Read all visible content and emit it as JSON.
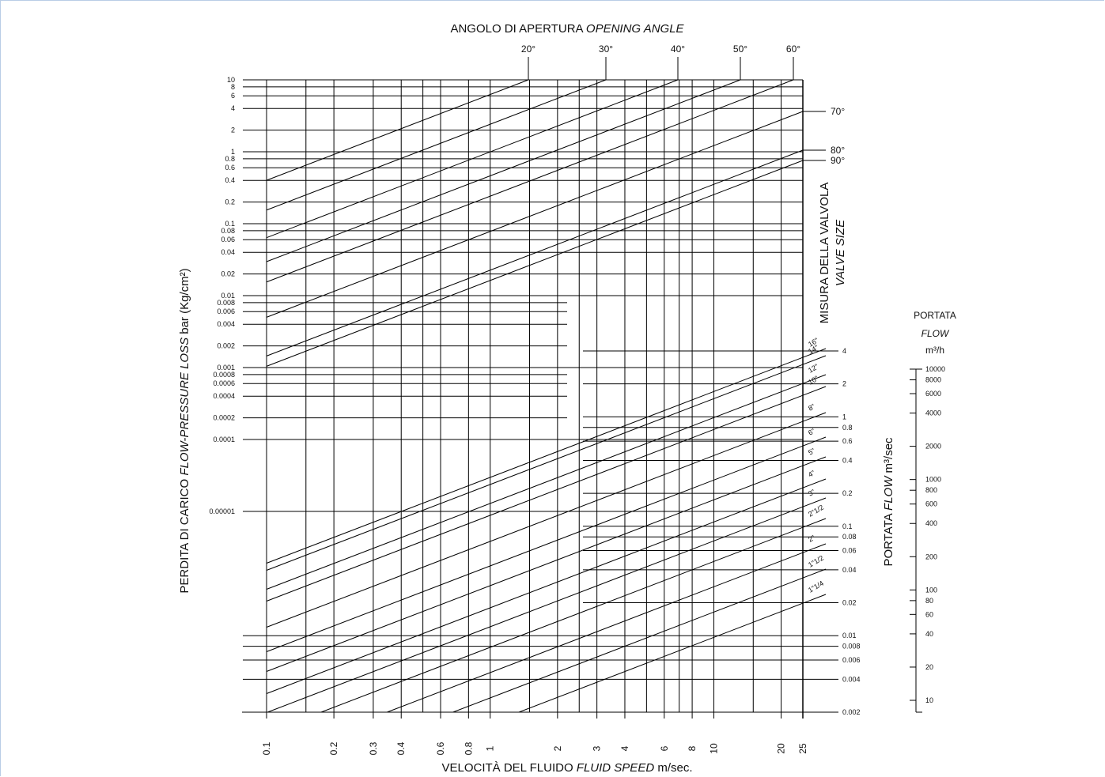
{
  "chart_data": {
    "type": "line",
    "title_it": "ANGOLO DI APERTURA",
    "title_en": "OPENING ANGLE",
    "xlabel_it": "VELOCITÀ DEL FLUIDO",
    "xlabel_en": "FLUID SPEED",
    "xlabel_unit": "m/sec.",
    "ylabel_it": "PERDITA DI CARICO",
    "ylabel_en": "FLOW-PRESSURE LOSS",
    "ylabel_unit": "bar (Kg/cm²)",
    "size_label_it": "MISURA DELLA VALVOLA",
    "size_label_en": "VALVE SIZE",
    "flow_label_it": "PORTATA",
    "flow_label_en": "FLOW",
    "flow_unit_m3h": "m³/h",
    "flow_rotated_unit": "m³/sec",
    "x_scale": "log",
    "xlim": [
      0.1,
      25
    ],
    "x_ticks": [
      "0.1",
      "0.2",
      "0.3",
      "0.4",
      "0.6",
      "0.8",
      "1",
      "2",
      "3",
      "4",
      "6",
      "8",
      "10",
      "20",
      "25"
    ],
    "pressure_scale": "log",
    "pressure_ticks": [
      "10",
      "8",
      "6",
      "4",
      "2",
      "1",
      "0.8",
      "0.6",
      "0.4",
      "0.2",
      "0.1",
      "0.08",
      "0.06",
      "0.04",
      "0.02",
      "0.01",
      "0.008",
      "0.006",
      "0.004",
      "0.002",
      "0.001",
      "0.0008",
      "0.0006",
      "0.0004",
      "0.0002",
      "0.0001",
      "0.00001"
    ],
    "opening_angles": [
      {
        "label": "20°"
      },
      {
        "label": "30°"
      },
      {
        "label": "40°"
      },
      {
        "label": "50°"
      },
      {
        "label": "60°"
      },
      {
        "label": "70°"
      },
      {
        "label": "80°"
      },
      {
        "label": "90°"
      }
    ],
    "flow_m3s_ticks": [
      "4",
      "2",
      "1",
      "0.8",
      "0.6",
      "0.4",
      "0.2",
      "0.1",
      "0.08",
      "0.06",
      "0.04",
      "0.02",
      "0.01",
      "0.008",
      "0.006",
      "0.004",
      "0.002"
    ],
    "valve_sizes": [
      {
        "label": "16\""
      },
      {
        "label": "14\""
      },
      {
        "label": "12\""
      },
      {
        "label": "10\""
      },
      {
        "label": "8\""
      },
      {
        "label": "6\""
      },
      {
        "label": "5\""
      },
      {
        "label": "4\""
      },
      {
        "label": "3\""
      },
      {
        "label": "2\"1/2"
      },
      {
        "label": "2\""
      },
      {
        "label": "1\"1/2"
      },
      {
        "label": "1\"1/4"
      }
    ],
    "flow_m3h_ticks": [
      "10000",
      "8000",
      "6000",
      "4000",
      "2000",
      "1000",
      "800",
      "600",
      "400",
      "200",
      "100",
      "80",
      "60",
      "40",
      "20",
      "10"
    ]
  }
}
